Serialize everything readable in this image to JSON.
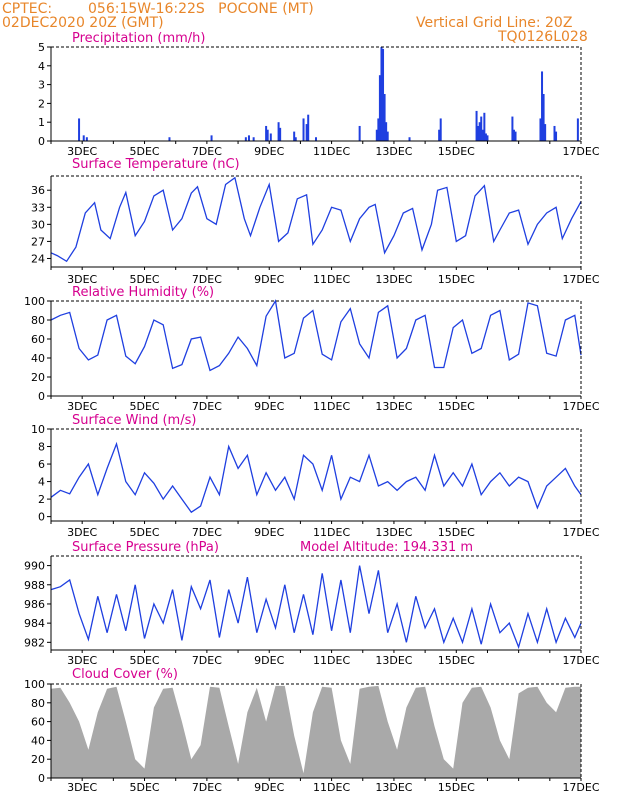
{
  "header": {
    "source": "CPTEC:",
    "location": "056:15W-16:22S   POCONE (MT)",
    "run": "02DEC2020 20Z (GMT)",
    "grid_note": "Vertical Grid Line: 20Z",
    "code": "TQ0126L028"
  },
  "colors": {
    "header": "#e8862a",
    "panel_title": "#d6008f",
    "line": "#1f3fe0",
    "cloud": "#a9a9a9",
    "frame": "#000000"
  },
  "x_axis": {
    "start": "02DEC2020 20Z",
    "tick_labels": [
      "3DEC",
      "5DEC",
      "7DEC",
      "9DEC",
      "11DEC",
      "13DEC",
      "15DEC",
      "17DEC"
    ]
  },
  "chart_data": [
    {
      "type": "bar",
      "title": "Precipitation (mm/h)",
      "ylim": [
        0,
        5
      ],
      "yticks": [
        0,
        1,
        2,
        3,
        4,
        5
      ],
      "x": [
        0.9,
        1.05,
        1.15,
        3.8,
        5.15,
        6.25,
        6.35,
        6.5,
        6.9,
        6.95,
        7.05,
        7.3,
        7.35,
        7.8,
        7.85,
        8.1,
        8.2,
        8.25,
        8.5,
        9.9,
        10.45,
        10.5,
        10.55,
        10.6,
        10.65,
        10.7,
        10.75,
        10.8,
        11.5,
        12.45,
        12.5,
        13.65,
        13.7,
        13.75,
        13.8,
        13.85,
        13.9,
        13.95,
        14.0,
        14.8,
        14.85,
        14.9,
        15.7,
        15.75,
        15.8,
        15.85,
        16.15,
        16.2,
        16.9
      ],
      "values": [
        1.2,
        0.3,
        0.2,
        0.2,
        0.3,
        0.2,
        0.3,
        0.2,
        0.8,
        0.6,
        0.4,
        1.0,
        0.7,
        0.5,
        0.2,
        1.2,
        0.9,
        1.4,
        0.2,
        0.8,
        0.6,
        1.2,
        3.5,
        5.0,
        4.9,
        2.5,
        1.0,
        0.5,
        0.2,
        0.6,
        1.2,
        1.6,
        0.8,
        1.0,
        1.3,
        0.6,
        1.5,
        0.4,
        0.3,
        1.3,
        0.6,
        0.5,
        1.2,
        3.7,
        2.5,
        0.9,
        0.8,
        0.5,
        1.2
      ]
    },
    {
      "type": "line",
      "title": "Surface Temperature (nC)",
      "ylim": [
        22.5,
        38.5
      ],
      "yticks": [
        24,
        27,
        30,
        33,
        36
      ],
      "x": [
        0.0,
        0.2,
        0.5,
        0.8,
        1.1,
        1.4,
        1.6,
        1.9,
        2.2,
        2.4,
        2.7,
        3.0,
        3.3,
        3.6,
        3.9,
        4.2,
        4.5,
        4.7,
        5.0,
        5.3,
        5.6,
        5.9,
        6.2,
        6.4,
        6.7,
        7.0,
        7.3,
        7.6,
        7.9,
        8.2,
        8.4,
        8.7,
        9.0,
        9.3,
        9.6,
        9.9,
        10.2,
        10.4,
        10.7,
        11.0,
        11.3,
        11.6,
        11.9,
        12.2,
        12.4,
        12.7,
        13.0,
        13.3,
        13.6,
        13.9,
        14.2,
        14.4,
        14.7,
        15.0,
        15.3,
        15.6,
        15.9,
        16.2,
        16.4,
        16.7,
        17.0
      ],
      "values": [
        25,
        24.5,
        23.5,
        26,
        32,
        33.8,
        29,
        27.5,
        33,
        35.6,
        28,
        30.5,
        35,
        36,
        29,
        31,
        35.5,
        36.6,
        31,
        30,
        37,
        38.2,
        31,
        28,
        33,
        37,
        27,
        28.5,
        34.5,
        35.2,
        26.5,
        29,
        33,
        32.5,
        27,
        31,
        33,
        33.5,
        25,
        28,
        32,
        32.8,
        25.5,
        30,
        36,
        36.5,
        27,
        28,
        35,
        36.8,
        27,
        29,
        32,
        32.5,
        26.5,
        30,
        32,
        33,
        27.5,
        31,
        34
      ]
    },
    {
      "type": "line",
      "title": "Relative Humidity (%)",
      "ylim": [
        0,
        100
      ],
      "yticks": [
        0,
        20,
        40,
        60,
        80,
        100
      ],
      "x": [
        0.0,
        0.3,
        0.6,
        0.9,
        1.2,
        1.5,
        1.8,
        2.1,
        2.4,
        2.7,
        3.0,
        3.3,
        3.6,
        3.9,
        4.2,
        4.5,
        4.8,
        5.1,
        5.4,
        5.7,
        6.0,
        6.3,
        6.6,
        6.9,
        7.2,
        7.5,
        7.8,
        8.1,
        8.4,
        8.7,
        9.0,
        9.3,
        9.6,
        9.9,
        10.2,
        10.5,
        10.8,
        11.1,
        11.4,
        11.7,
        12.0,
        12.3,
        12.6,
        12.9,
        13.2,
        13.5,
        13.8,
        14.1,
        14.4,
        14.7,
        15.0,
        15.3,
        15.6,
        15.9,
        16.2,
        16.5,
        16.8,
        17.0
      ],
      "values": [
        80,
        85,
        88,
        50,
        38,
        43,
        80,
        85,
        42,
        34,
        52,
        80,
        75,
        29,
        33,
        60,
        62,
        27,
        32,
        45,
        62,
        50,
        32,
        84,
        100,
        40,
        45,
        82,
        90,
        44,
        38,
        78,
        92,
        55,
        40,
        88,
        95,
        40,
        50,
        80,
        85,
        30,
        30,
        72,
        80,
        45,
        50,
        85,
        90,
        38,
        44,
        98,
        95,
        45,
        42,
        80,
        85,
        43
      ]
    },
    {
      "type": "line",
      "title": "Surface Wind (m/s)",
      "ylim": [
        -0.5,
        10
      ],
      "yticks": [
        0,
        2,
        4,
        6,
        8,
        10
      ],
      "x": [
        0.0,
        0.3,
        0.6,
        0.9,
        1.2,
        1.5,
        1.8,
        2.1,
        2.4,
        2.7,
        3.0,
        3.3,
        3.6,
        3.9,
        4.2,
        4.5,
        4.8,
        5.1,
        5.4,
        5.7,
        6.0,
        6.3,
        6.6,
        6.9,
        7.2,
        7.5,
        7.8,
        8.1,
        8.4,
        8.7,
        9.0,
        9.3,
        9.6,
        9.9,
        10.2,
        10.5,
        10.8,
        11.1,
        11.4,
        11.7,
        12.0,
        12.3,
        12.6,
        12.9,
        13.2,
        13.5,
        13.8,
        14.1,
        14.4,
        14.7,
        15.0,
        15.3,
        15.6,
        15.9,
        16.2,
        16.5,
        16.8,
        17.0
      ],
      "values": [
        2.2,
        3.0,
        2.6,
        4.5,
        6.0,
        2.5,
        5.5,
        8.3,
        4.0,
        2.5,
        5.0,
        3.8,
        2.0,
        3.5,
        2.0,
        0.5,
        1.2,
        4.5,
        2.5,
        8.0,
        5.5,
        7.0,
        2.5,
        5.0,
        3.0,
        4.5,
        2.0,
        7.0,
        6.0,
        3.0,
        7.0,
        2.0,
        4.5,
        4.0,
        7.0,
        3.5,
        4.0,
        3.0,
        4.0,
        4.5,
        3.0,
        7.0,
        3.5,
        5.0,
        3.5,
        6.0,
        2.5,
        4.0,
        5.0,
        3.5,
        4.5,
        4.0,
        1.0,
        3.5,
        4.5,
        5.5,
        3.5,
        2.5
      ]
    },
    {
      "type": "line",
      "title": "Surface Pressure (hPa)",
      "annotation": "Model Altitude: 194.331 m",
      "ylim": [
        981.2,
        991
      ],
      "yticks": [
        982,
        984,
        986,
        988,
        990
      ],
      "x": [
        0.0,
        0.3,
        0.6,
        0.9,
        1.2,
        1.5,
        1.8,
        2.1,
        2.4,
        2.7,
        3.0,
        3.3,
        3.6,
        3.9,
        4.2,
        4.5,
        4.8,
        5.1,
        5.4,
        5.7,
        6.0,
        6.3,
        6.6,
        6.9,
        7.2,
        7.5,
        7.8,
        8.1,
        8.4,
        8.7,
        9.0,
        9.3,
        9.6,
        9.9,
        10.2,
        10.5,
        10.8,
        11.1,
        11.4,
        11.7,
        12.0,
        12.3,
        12.6,
        12.9,
        13.2,
        13.5,
        13.8,
        14.1,
        14.4,
        14.7,
        15.0,
        15.3,
        15.6,
        15.9,
        16.2,
        16.5,
        16.8,
        17.0
      ],
      "values": [
        987.5,
        987.8,
        988.5,
        985.0,
        982.3,
        986.8,
        983.0,
        987.0,
        983.2,
        988.0,
        982.4,
        986.0,
        984.0,
        987.5,
        982.2,
        987.8,
        985.5,
        988.5,
        982.5,
        987.5,
        984.0,
        988.8,
        983.0,
        986.5,
        983.5,
        988.0,
        983.0,
        987.0,
        982.8,
        989.2,
        983.2,
        988.5,
        983.0,
        990.0,
        985.0,
        989.5,
        983.0,
        986.0,
        982.0,
        986.8,
        983.5,
        985.5,
        982.0,
        984.5,
        982.0,
        985.5,
        981.8,
        986.0,
        983.0,
        984.0,
        981.5,
        985.0,
        982.0,
        985.5,
        982.0,
        984.5,
        982.5,
        984.0
      ]
    },
    {
      "type": "area",
      "title": "Cloud Cover (%)",
      "ylim": [
        0,
        100
      ],
      "yticks": [
        0,
        20,
        40,
        60,
        80,
        100
      ],
      "x": [
        0.0,
        0.3,
        0.6,
        0.9,
        1.2,
        1.5,
        1.8,
        2.1,
        2.4,
        2.7,
        3.0,
        3.3,
        3.6,
        3.9,
        4.2,
        4.5,
        4.8,
        5.1,
        5.4,
        5.7,
        6.0,
        6.3,
        6.6,
        6.9,
        7.2,
        7.5,
        7.8,
        8.1,
        8.4,
        8.7,
        9.0,
        9.3,
        9.6,
        9.9,
        10.2,
        10.5,
        10.8,
        11.1,
        11.4,
        11.7,
        12.0,
        12.3,
        12.6,
        12.9,
        13.2,
        13.5,
        13.8,
        14.1,
        14.4,
        14.7,
        15.0,
        15.3,
        15.6,
        15.9,
        16.2,
        16.5,
        16.8,
        17.0
      ],
      "values": [
        95,
        96,
        80,
        60,
        30,
        70,
        95,
        97,
        60,
        20,
        10,
        75,
        95,
        96,
        60,
        20,
        35,
        97,
        96,
        55,
        15,
        70,
        96,
        60,
        98,
        98,
        45,
        5,
        70,
        97,
        96,
        40,
        15,
        95,
        97,
        98,
        60,
        30,
        75,
        96,
        97,
        55,
        20,
        10,
        80,
        96,
        97,
        75,
        40,
        20,
        90,
        96,
        97,
        80,
        70,
        96,
        97,
        97
      ]
    }
  ]
}
